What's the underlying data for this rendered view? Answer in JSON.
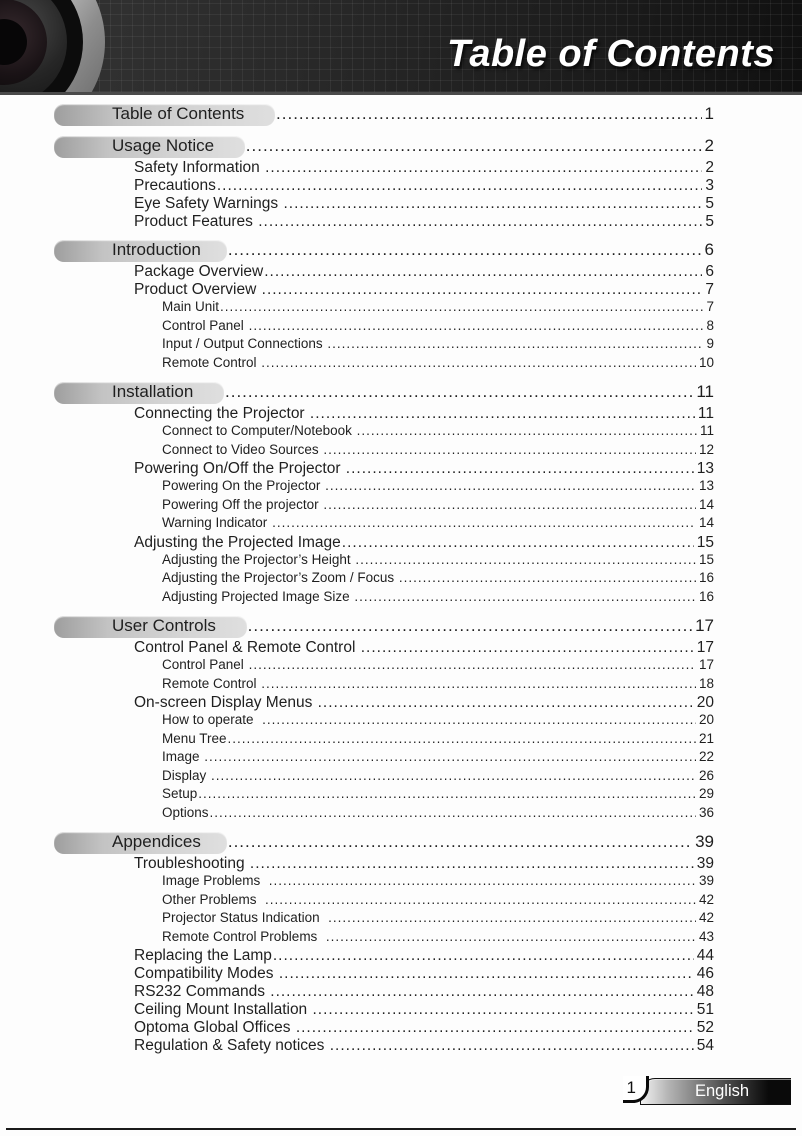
{
  "header": {
    "title": "Table of Contents"
  },
  "footer": {
    "page_number": "1",
    "language_label": "English"
  },
  "colors": {
    "header_background": "#1b1b1b",
    "title_text": "#ffffff",
    "section_pill_gray": "#c3c3c3",
    "body_text": "#1f1f1f",
    "footer_tab_black": "#0a0a0a"
  },
  "toc": {
    "entries": [
      {
        "level": 1,
        "label": "Table of Contents ",
        "page": "1"
      },
      {
        "level": 1,
        "label": "Usage Notice ",
        "page": "2"
      },
      {
        "level": 2,
        "label": "Safety Information ",
        "page": "2"
      },
      {
        "level": 2,
        "label": "Precautions",
        "page": "3"
      },
      {
        "level": 2,
        "label": "Eye Safety Warnings ",
        "page": "5"
      },
      {
        "level": 2,
        "label": "Product Features ",
        "page": "5"
      },
      {
        "level": 1,
        "label": "Introduction",
        "page": "6"
      },
      {
        "level": 2,
        "label": "Package Overview",
        "page": "6"
      },
      {
        "level": 2,
        "label": "Product Overview ",
        "page": "7"
      },
      {
        "level": 3,
        "label": "Main Unit",
        "page": "7"
      },
      {
        "level": 3,
        "label": "Control Panel ",
        "page": "8"
      },
      {
        "level": 3,
        "label": "Input / Output Connections ",
        "page": " 9"
      },
      {
        "level": 3,
        "label": "Remote Control ",
        "page": " 10"
      },
      {
        "level": 1,
        "label": "Installation ",
        "page": " 11"
      },
      {
        "level": 2,
        "label": "Connecting the Projector ",
        "page": " 11"
      },
      {
        "level": 3,
        "label": "Connect to Computer/Notebook ",
        "page": " 11"
      },
      {
        "level": 3,
        "label": "Connect to Video Sources ",
        "page": " 12"
      },
      {
        "level": 2,
        "label": "Powering On/Off the Projector ",
        "page": "13"
      },
      {
        "level": 3,
        "label": "Powering On the Projector ",
        "page": " 13"
      },
      {
        "level": 3,
        "label": "Powering Off the projector ",
        "page": " 14"
      },
      {
        "level": 3,
        "label": "Warning Indicator ",
        "page": " 14"
      },
      {
        "level": 2,
        "label": "Adjusting the Projected Image",
        "page": "15"
      },
      {
        "level": 3,
        "label": "Adjusting the Projector’s Height ",
        "page": " 15"
      },
      {
        "level": 3,
        "label": "Adjusting the Projector’s Zoom / Focus ",
        "page": " 16"
      },
      {
        "level": 3,
        "label": "Adjusting Projected Image Size ",
        "page": " 16"
      },
      {
        "level": 1,
        "label": "User Controls ",
        "page": " 17"
      },
      {
        "level": 2,
        "label": "Control Panel & Remote Control ",
        "page": "17"
      },
      {
        "level": 3,
        "label": "Control Panel ",
        "page": " 17"
      },
      {
        "level": 3,
        "label": "Remote Control ",
        "page": " 18"
      },
      {
        "level": 2,
        "label": "On-screen Display Menus ",
        "page": "20"
      },
      {
        "level": 3,
        "label": "How to operate  ",
        "page": " 20"
      },
      {
        "level": 3,
        "label": "Menu Tree",
        "page": "21"
      },
      {
        "level": 3,
        "label": "Image ",
        "page": "22"
      },
      {
        "level": 3,
        "label": "Display ",
        "page": "26"
      },
      {
        "level": 3,
        "label": "Setup",
        "page": "29"
      },
      {
        "level": 3,
        "label": "Options",
        "page": "36"
      },
      {
        "level": 1,
        "label": "Appendices",
        "page": "39"
      },
      {
        "level": 2,
        "label": "Troubleshooting ",
        "page": "39"
      },
      {
        "level": 3,
        "label": "Image Problems  ",
        "page": " 39"
      },
      {
        "level": 3,
        "label": "Other Problems  ",
        "page": " 42"
      },
      {
        "level": 3,
        "label": "Projector Status Indication  ",
        "page": " 42"
      },
      {
        "level": 3,
        "label": "Remote Control Problems  ",
        "page": " 43"
      },
      {
        "level": 2,
        "label": "Replacing the Lamp",
        "page": "44"
      },
      {
        "level": 2,
        "label": "Compatibility Modes ",
        "page": "46"
      },
      {
        "level": 2,
        "label": "RS232 Commands ",
        "page": "48"
      },
      {
        "level": 2,
        "label": "Ceiling Mount Installation ",
        "page": "51"
      },
      {
        "level": 2,
        "label": "Optoma Global Offices ",
        "page": "52"
      },
      {
        "level": 2,
        "label": "Regulation & Safety notices ",
        "page": "54"
      }
    ]
  }
}
